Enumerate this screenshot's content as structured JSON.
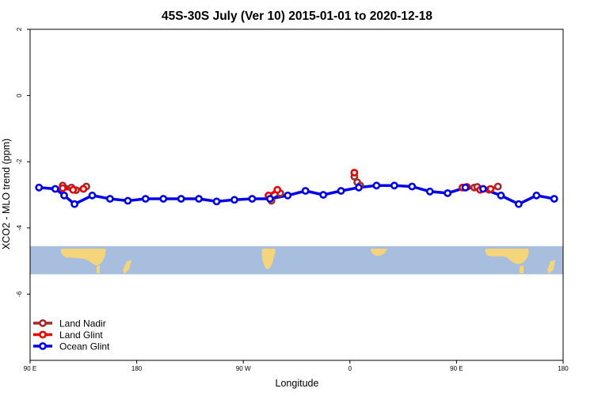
{
  "chart_data": {
    "type": "line",
    "title": "45S-30S July (Ver 10)   2015-01-01 to 2020-12-18",
    "xlabel": "Longitude",
    "ylabel": "XCO2 - MLO trend (ppm)",
    "xlim": [
      90,
      450
    ],
    "ylim": [
      -8,
      2
    ],
    "x_ticks": [
      {
        "value": 90,
        "label": "90 E"
      },
      {
        "value": 162,
        "label": "180"
      },
      {
        "value": 234,
        "label": "90 W"
      },
      {
        "value": 306,
        "label": "0"
      },
      {
        "value": 378,
        "label": "90 E"
      },
      {
        "value": 450,
        "label": "180"
      }
    ],
    "y_ticks": [
      {
        "value": 2,
        "label": "2"
      },
      {
        "value": 0,
        "label": "0"
      },
      {
        "value": -2,
        "label": "-2"
      },
      {
        "value": -4,
        "label": "-4"
      },
      {
        "value": -6,
        "label": "-6"
      }
    ],
    "map_band": {
      "ylim": [
        -5.4,
        -4.55
      ],
      "ocean_color": "#a8bedf",
      "land_color": "#f6d57a"
    },
    "legend": {
      "position": "bottom-left"
    },
    "series": [
      {
        "name": "Land Nadir",
        "color": "#a52a2a",
        "segments": [
          [
            [
              112,
              -2.72
            ],
            [
              118,
              -2.78
            ],
            [
              121,
              -2.86
            ],
            [
              128,
              -2.75
            ]
          ],
          [
            [
              253,
              -3.18
            ],
            [
              259,
              -2.95
            ]
          ],
          [
            [
              309,
              -2.45
            ],
            [
              311,
              -2.62
            ],
            [
              313,
              -2.72
            ]
          ],
          [
            [
              390,
              -2.78
            ],
            [
              392,
              -2.76
            ],
            [
              400,
              -2.85
            ],
            [
              406,
              -2.75
            ]
          ]
        ]
      },
      {
        "name": "Land Glint",
        "color": "#ee0000",
        "segments": [
          [
            [
              112,
              -2.8
            ],
            [
              119,
              -2.85
            ],
            [
              126,
              -2.82
            ]
          ],
          [
            [
              251,
              -3.02
            ],
            [
              257,
              -2.85
            ]
          ],
          [
            [
              309,
              -2.33
            ]
          ],
          [
            [
              382,
              -2.78
            ],
            [
              385,
              -2.76
            ],
            [
              394,
              -2.85
            ],
            [
              401,
              -2.82
            ]
          ]
        ]
      },
      {
        "name": "Ocean Glint",
        "color": "#0000ee",
        "segments": [
          [
            [
              96,
              -2.78
            ],
            [
              107,
              -2.82
            ],
            [
              113,
              -3.02
            ],
            [
              120,
              -3.28
            ],
            [
              132,
              -3.02
            ],
            [
              144,
              -3.12
            ],
            [
              156,
              -3.18
            ],
            [
              168,
              -3.12
            ],
            [
              180,
              -3.12
            ],
            [
              192,
              -3.12
            ],
            [
              204,
              -3.12
            ],
            [
              216,
              -3.2
            ],
            [
              228,
              -3.15
            ],
            [
              240,
              -3.12
            ],
            [
              252,
              -3.12
            ],
            [
              264,
              -3.02
            ],
            [
              276,
              -2.88
            ],
            [
              288,
              -3.0
            ],
            [
              300,
              -2.88
            ],
            [
              312,
              -2.78
            ],
            [
              324,
              -2.72
            ],
            [
              336,
              -2.72
            ],
            [
              348,
              -2.75
            ],
            [
              360,
              -2.9
            ],
            [
              372,
              -2.95
            ],
            [
              384,
              -2.78
            ],
            [
              396,
              -2.82
            ],
            [
              408,
              -3.02
            ],
            [
              420,
              -3.28
            ],
            [
              432,
              -3.02
            ],
            [
              444,
              -3.12
            ]
          ]
        ]
      }
    ]
  }
}
